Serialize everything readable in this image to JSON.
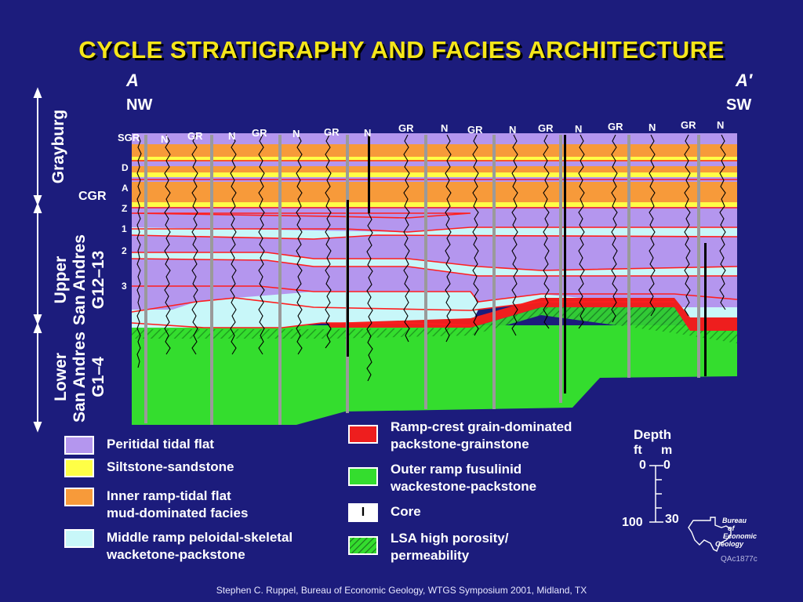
{
  "title": "CYCLE STRATIGRAPHY AND FACIES ARCHITECTURE",
  "section": {
    "left_end": "A",
    "right_end": "A′",
    "left_dir": "NW",
    "right_dir": "SW"
  },
  "units": {
    "grayburg": "Grayburg",
    "upper_sa_line1": "Upper",
    "upper_sa_line2": "San Andres",
    "upper_sa_line3": "G12–13",
    "lower_sa_line1": "Lower",
    "lower_sa_line2": "San Andres",
    "lower_sa_line3": "G1–4"
  },
  "log_headers": {
    "first": "SGR",
    "gr": "GR",
    "n": "N"
  },
  "horizons": {
    "cgr": "CGR",
    "d": "D",
    "a": "A",
    "z": "Z",
    "c1": "1",
    "c2": "2",
    "c3": "3"
  },
  "legend": {
    "peritidal": "Peritidal tidal flat",
    "siltstone": "Siltstone-sandstone",
    "inner_ramp": "Inner ramp-tidal flat\nmud-dominated facies",
    "middle_ramp": "Middle ramp peloidal-skeletal\nwacketone-packstone",
    "ramp_crest": "Ramp-crest grain-dominated\npackstone-grainstone",
    "outer_ramp": "Outer ramp fusulinid\nwackestone-packstone",
    "core_symbol": "I",
    "core": "Core",
    "lsa": "LSA high porosity/\npermeability"
  },
  "depth_scale": {
    "title": "Depth",
    "ft": "ft",
    "m": "m",
    "ft0": "0",
    "m0": "0",
    "ft100": "100",
    "m30": "30"
  },
  "logo": {
    "line1": "Bureau",
    "line2": "of",
    "line3": "Economic",
    "line4": "Geology"
  },
  "figure_id": "QAc1877c",
  "footer": "Stephen C. Ruppel, Bureau of Economic Geology, WTGS Symposium 2001, Midland, TX",
  "colors": {
    "background": "#1c1c7c",
    "title": "#f5e619",
    "peritidal": "#b496ee",
    "siltstone": "#ffff46",
    "inner_ramp": "#f79a3a",
    "middle_ramp": "#c8f7f9",
    "ramp_crest": "#ee1e1e",
    "outer_ramp": "#34dd2e"
  }
}
